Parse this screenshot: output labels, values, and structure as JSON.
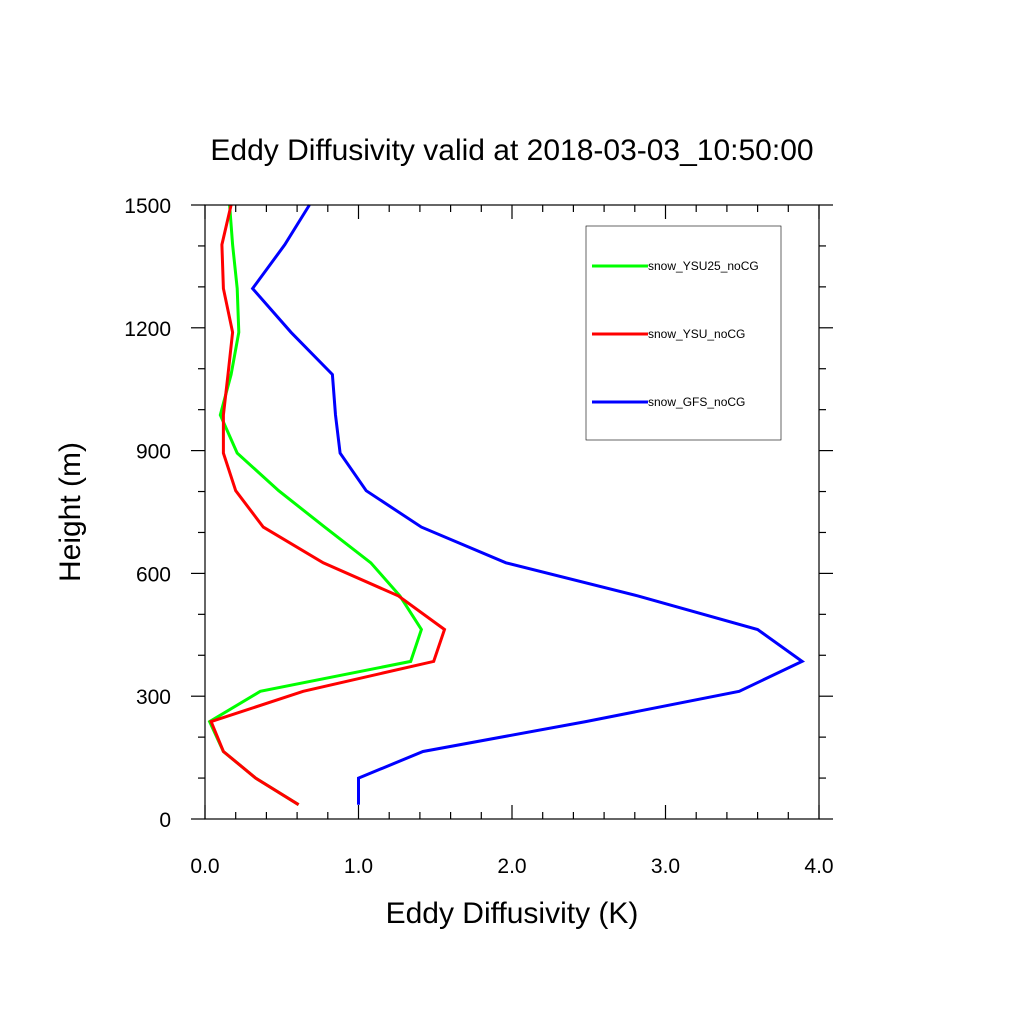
{
  "chart_data": {
    "type": "line",
    "title": "Eddy Diffusivity valid at 2018-03-03_10:50:00",
    "xlabel": "Eddy Diffusivity (K)",
    "ylabel": "Height (m)",
    "xlim": [
      0,
      4
    ],
    "ylim": [
      0,
      1500
    ],
    "x_ticks": [
      0,
      1,
      2,
      3,
      4
    ],
    "x_tick_labels": [
      "0.0",
      "1.0",
      "2.0",
      "3.0",
      "4.0"
    ],
    "y_ticks": [
      0,
      300,
      600,
      900,
      1200,
      1500
    ],
    "y_tick_labels": [
      "0",
      "300",
      "600",
      "900",
      "1200",
      "1500"
    ],
    "grid": false,
    "legend_position": "top-right",
    "series": [
      {
        "name": "snow_YSU25_noCG",
        "color": "#00ff00",
        "points": [
          [
            0.61,
            35
          ],
          [
            0.33,
            100
          ],
          [
            0.12,
            165
          ],
          [
            0.03,
            238
          ],
          [
            0.36,
            312
          ],
          [
            1.34,
            385
          ],
          [
            1.41,
            463
          ],
          [
            1.27,
            545
          ],
          [
            1.08,
            626
          ],
          [
            0.78,
            713
          ],
          [
            0.48,
            802
          ],
          [
            0.21,
            894
          ],
          [
            0.1,
            987
          ],
          [
            0.17,
            1086
          ],
          [
            0.22,
            1189
          ],
          [
            0.21,
            1296
          ],
          [
            0.18,
            1403
          ],
          [
            0.16,
            1500
          ]
        ]
      },
      {
        "name": "snow_YSU_noCG",
        "color": "#ff0000",
        "points": [
          [
            0.61,
            35
          ],
          [
            0.33,
            100
          ],
          [
            0.12,
            165
          ],
          [
            0.04,
            238
          ],
          [
            0.64,
            312
          ],
          [
            1.49,
            385
          ],
          [
            1.56,
            463
          ],
          [
            1.26,
            545
          ],
          [
            0.77,
            626
          ],
          [
            0.38,
            713
          ],
          [
            0.2,
            802
          ],
          [
            0.12,
            894
          ],
          [
            0.12,
            987
          ],
          [
            0.15,
            1086
          ],
          [
            0.18,
            1189
          ],
          [
            0.12,
            1296
          ],
          [
            0.11,
            1403
          ],
          [
            0.17,
            1500
          ]
        ]
      },
      {
        "name": "snow_GFS_noCG",
        "color": "#0000ff",
        "points": [
          [
            1.0,
            35
          ],
          [
            1.0,
            100
          ],
          [
            1.42,
            165
          ],
          [
            2.48,
            238
          ],
          [
            3.48,
            312
          ],
          [
            3.89,
            385
          ],
          [
            3.6,
            463
          ],
          [
            2.82,
            545
          ],
          [
            1.96,
            626
          ],
          [
            1.41,
            713
          ],
          [
            1.05,
            802
          ],
          [
            0.88,
            894
          ],
          [
            0.85,
            987
          ],
          [
            0.83,
            1086
          ],
          [
            0.56,
            1189
          ],
          [
            0.31,
            1296
          ],
          [
            0.52,
            1403
          ],
          [
            0.68,
            1500
          ]
        ]
      }
    ]
  }
}
